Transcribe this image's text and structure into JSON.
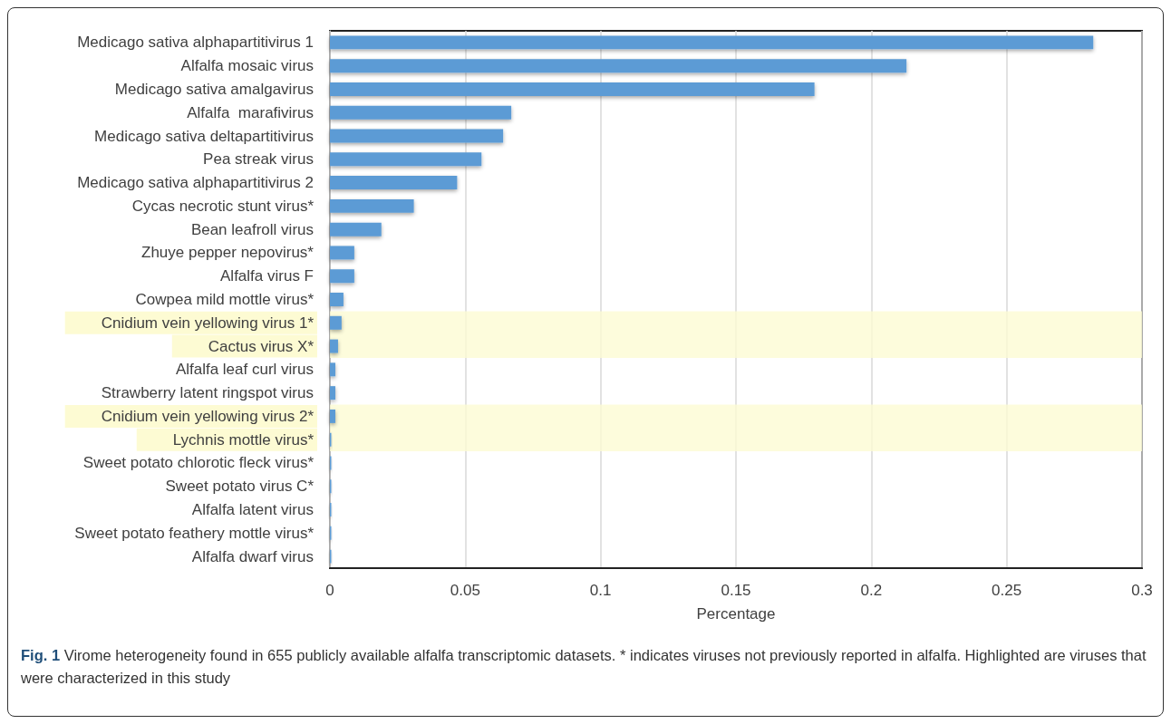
{
  "chart_data": {
    "type": "bar",
    "orientation": "horizontal",
    "xlabel": "Percentage",
    "categories": [
      "Medicago sativa alphapartitivirus 1",
      "Alfalfa mosaic virus",
      "Medicago sativa amalgavirus",
      "Alfalfa  marafivirus",
      "Medicago sativa deltapartitivirus",
      "Pea streak virus",
      "Medicago sativa alphapartitivirus 2",
      "Cycas necrotic stunt virus*",
      "Bean leafroll virus",
      "Zhuye pepper nepovirus*",
      "Alfalfa virus F",
      "Cowpea mild mottle virus*",
      "Cnidium vein yellowing virus 1*",
      "Cactus virus X*",
      "Alfalfa leaf curl virus",
      "Strawberry latent ringspot virus",
      "Cnidium vein yellowing virus 2*",
      "Lychnis mottle virus*",
      "Sweet potato chlorotic fleck virus*",
      "Sweet potato virus C*",
      "Alfalfa latent virus",
      "Sweet potato feathery mottle virus*",
      "Alfalfa dwarf virus"
    ],
    "values": [
      0.282,
      0.213,
      0.179,
      0.067,
      0.064,
      0.056,
      0.047,
      0.031,
      0.019,
      0.009,
      0.009,
      0.005,
      0.0043,
      0.003,
      0.002,
      0.002,
      0.002,
      0.0005,
      0.0005,
      0.0005,
      0.0005,
      0.0005,
      0.0005
    ],
    "color": "#5b9bd5",
    "xlim": [
      0,
      0.3
    ],
    "xticks": [
      0,
      0.05,
      0.1,
      0.15,
      0.2,
      0.25,
      0.3
    ],
    "grid": "x",
    "bands": [
      {
        "axis": "y",
        "from": "Cnidium vein yellowing virus 1*",
        "to": "Cactus virus X*",
        "color": "#fdfbd3"
      },
      {
        "axis": "y",
        "from": "Cnidium vein yellowing virus 2*",
        "to": "Lychnis mottle virus*",
        "color": "#fdfbd3"
      }
    ],
    "annotations": [
      "Fig. 1",
      "Virome heterogeneity found in 655 publicly available alfalfa transcriptomic datasets. * indicates viruses not previously reported in alfalfa. Highlighted are viruses that were characterized in this study"
    ]
  }
}
